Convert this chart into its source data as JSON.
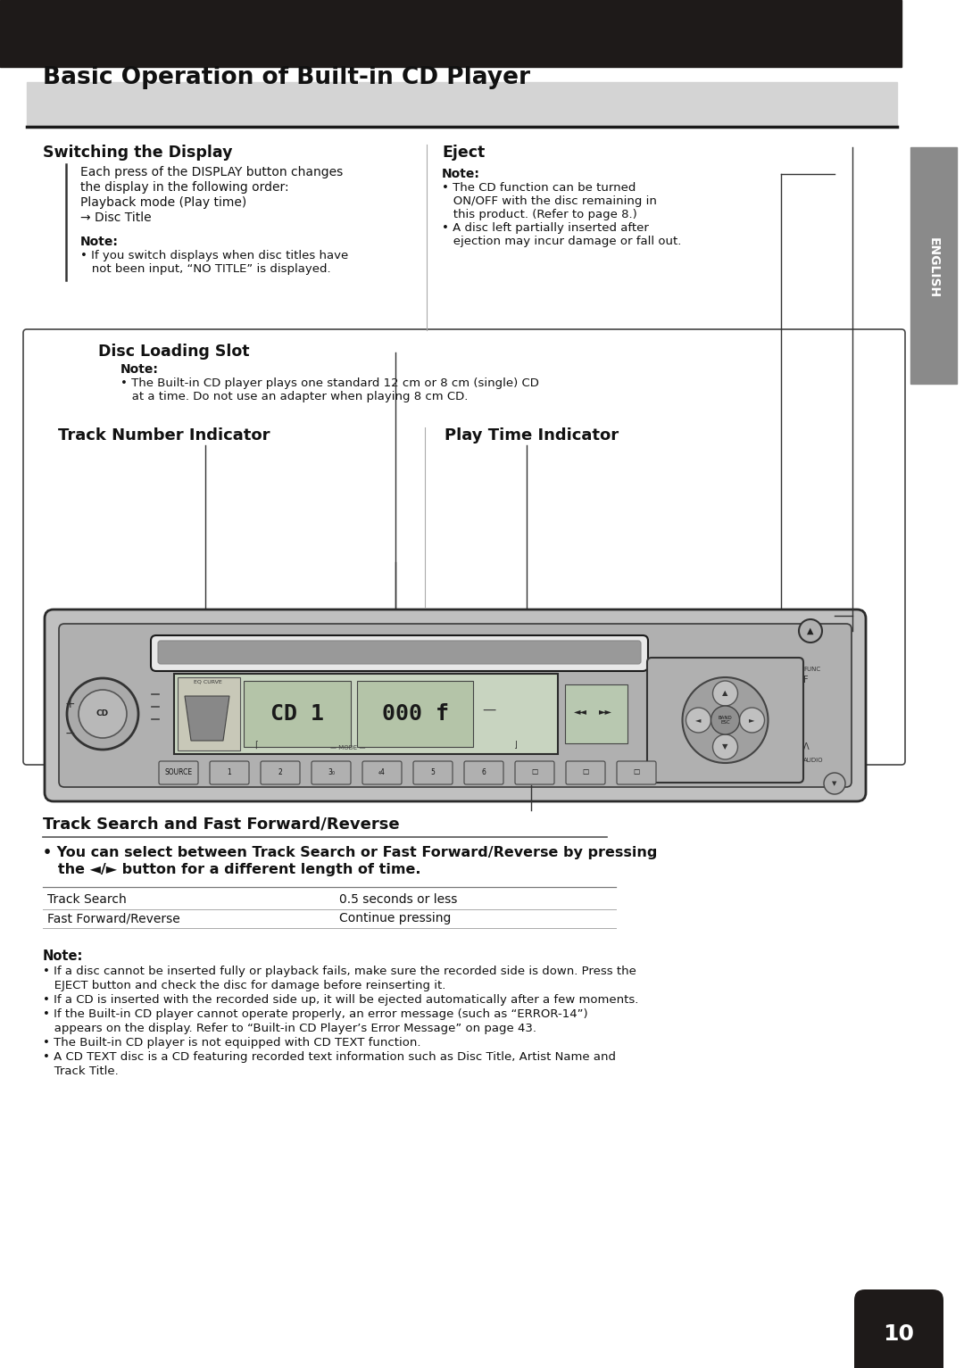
{
  "page_bg": "#ffffff",
  "top_bar_color": "#1e1a19",
  "header_bg": "#d4d4d4",
  "header_line_color": "#1a1a1a",
  "header_text": "Basic Operation of Built-in CD Player",
  "sidebar_color": "#8a8a8a",
  "sidebar_label": "ENGLISH",
  "page_number": "10",
  "section1_title": "Switching the Display",
  "section1_body_lines": [
    "Each press of the DISPLAY button changes",
    "the display in the following order:",
    "Playback mode (Play time)",
    "→ Disc Title"
  ],
  "section1_note_title": "Note:",
  "section1_note_lines": [
    "• If you switch displays when disc titles have",
    "   not been input, “NO TITLE” is displayed."
  ],
  "section2_title": "Eject",
  "section2_note_title": "Note:",
  "section2_note_lines": [
    "• The CD function can be turned",
    "   ON/OFF with the disc remaining in",
    "   this product. (Refer to page 8.)",
    "• A disc left partially inserted after",
    "   ejection may incur damage or fall out."
  ],
  "section3_title": "Disc Loading Slot",
  "section3_note_title": "Note:",
  "section3_note_lines": [
    "• The Built-in CD player plays one standard 12 cm or 8 cm (single) CD",
    "   at a time. Do not use an adapter when playing 8 cm CD."
  ],
  "label_track": "Track Number Indicator",
  "label_play": "Play Time Indicator",
  "section5_title": "Track Search and Fast Forward/Reverse",
  "section5_line1": "• You can select between Track Search or Fast Forward/Reverse by pressing",
  "section5_line2": "   the ◄/► button for a different length of time.",
  "table_col1": [
    "Track Search",
    "Fast Forward/Reverse"
  ],
  "table_col2": [
    "0.5 seconds or less",
    "Continue pressing"
  ],
  "note_final_title": "Note:",
  "note_final_lines": [
    "• If a disc cannot be inserted fully or playback fails, make sure the recorded side is down. Press the",
    "   EJECT button and check the disc for damage before reinserting it.",
    "• If a CD is inserted with the recorded side up, it will be ejected automatically after a few moments.",
    "• If the Built-in CD player cannot operate properly, an error message (such as “ERROR-14”)",
    "   appears on the display. Refer to “Built-in CD Player’s Error Message” on page 43.",
    "• The Built-in CD player is not equipped with CD TEXT function.",
    "• A CD TEXT disc is a CD featuring recorded text information such as Disc Title, Artist Name and",
    "   Track Title."
  ],
  "device_color": "#c0c0c0",
  "device_inner_color": "#b0b0b0",
  "display_bg": "#c8d4c0",
  "display_dark": "#484848"
}
